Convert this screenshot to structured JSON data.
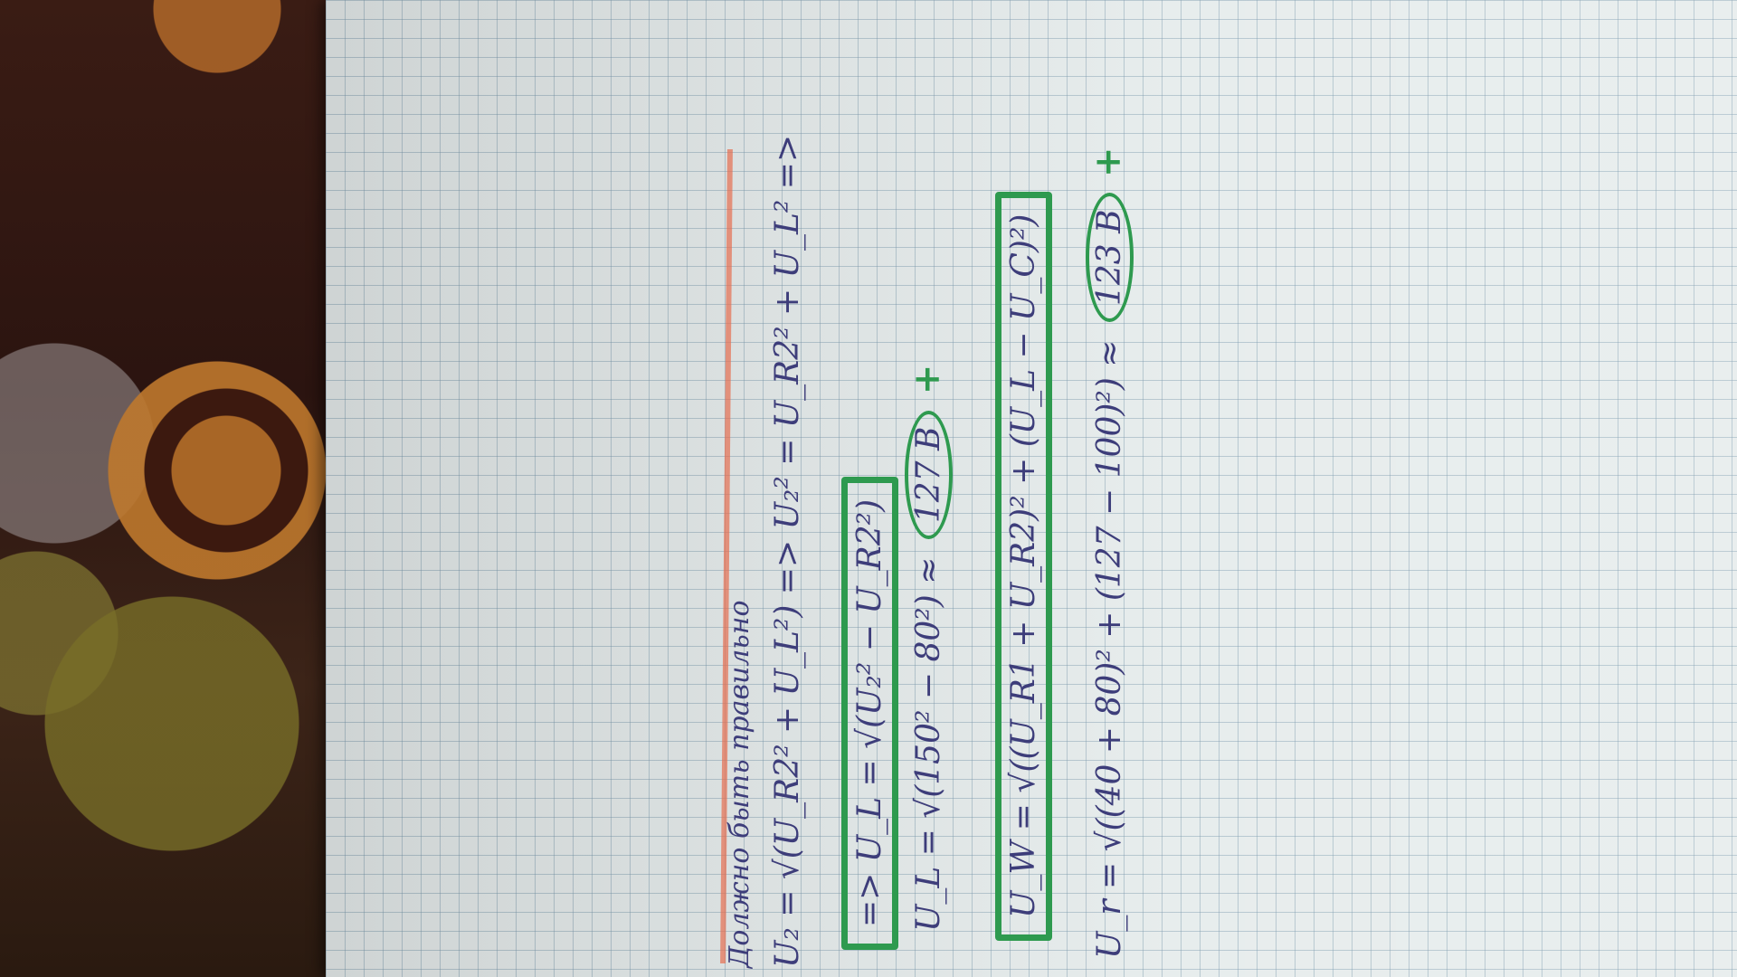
{
  "sheet": {
    "heading": "Должно быть правильно",
    "lines": [
      "U₂ = √(U_R2² + U_L²)  =>  U₂² = U_R2² + U_L²  =>",
      "=>  U_L = √(U₂² − U_R2²)",
      "U_L = √(150² − 80²) ≈",
      "U_W = √((U_R1 + U_R2)² + (U_L − U_C)²)",
      "U_r = √((40 + 80)² + (127 − 100)²) ≈"
    ],
    "answers": [
      "127 В",
      "123 В"
    ],
    "check_mark": "+"
  },
  "colors": {
    "ink": "#3d3d7a",
    "marker_green": "#2e9a4f",
    "margin_red": "#e66e50",
    "paper": "#e6ecec"
  }
}
